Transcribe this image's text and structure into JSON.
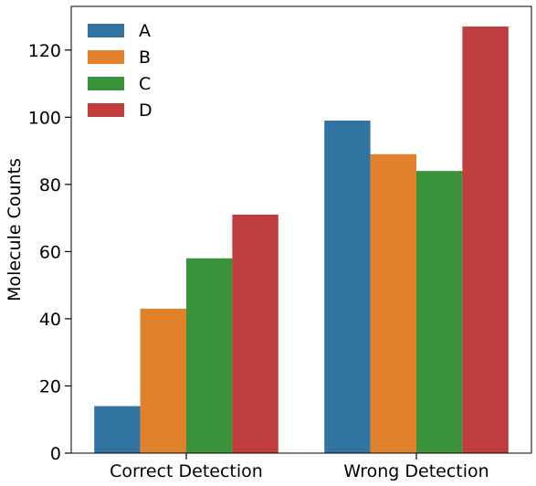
{
  "chart_data": {
    "type": "bar",
    "title": "",
    "xlabel": "",
    "ylabel": "Molecule Counts",
    "categories": [
      "Correct Detection",
      "Wrong Detection"
    ],
    "series": [
      {
        "name": "A",
        "color": "#3274a1",
        "values": [
          14,
          99
        ]
      },
      {
        "name": "B",
        "color": "#e1812c",
        "values": [
          43,
          89
        ]
      },
      {
        "name": "C",
        "color": "#3a923a",
        "values": [
          58,
          84
        ]
      },
      {
        "name": "D",
        "color": "#c03d3e",
        "values": [
          71,
          127
        ]
      }
    ],
    "ylim": [
      0,
      133
    ],
    "yticks": [
      0,
      20,
      40,
      60,
      80,
      100,
      120
    ],
    "grid": false,
    "legend": {
      "position": "top-left"
    }
  }
}
